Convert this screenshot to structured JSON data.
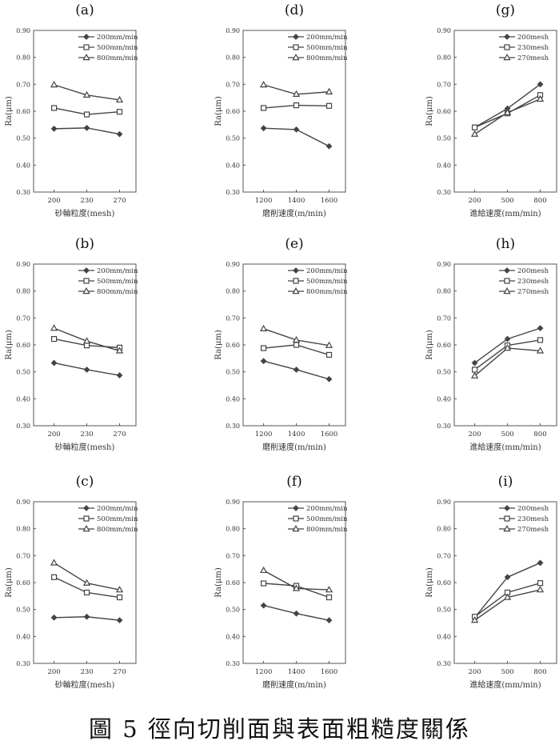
{
  "caption": "圖 5 徑向切削面與表面粗糙度關係",
  "colors": {
    "axis": "#555555",
    "line": "#444444",
    "text": "#333333"
  },
  "chart_data": [
    {
      "panel": "(a)",
      "type": "line",
      "ylabel": "Ra(μm)",
      "xlabel": "砂輪粒度(mesh)",
      "categories": [
        "200",
        "230",
        "270"
      ],
      "ylim": [
        0.3,
        0.9
      ],
      "yticks": [
        "0.30",
        "0.40",
        "0.50",
        "0.60",
        "0.70",
        "0.80",
        "0.90"
      ],
      "legend": "top-right",
      "series": [
        {
          "name": "200mm/min",
          "marker": "diamond",
          "values": [
            0.535,
            0.538,
            0.515
          ]
        },
        {
          "name": "500mm/min",
          "marker": "square",
          "values": [
            0.612,
            0.588,
            0.598
          ]
        },
        {
          "name": "800mm/min",
          "marker": "triangle",
          "values": [
            0.698,
            0.66,
            0.642
          ]
        }
      ]
    },
    {
      "panel": "(d)",
      "type": "line",
      "ylabel": "Ra(μm)",
      "xlabel": "磨削速度(m/min)",
      "categories": [
        "1200",
        "1400",
        "1600"
      ],
      "ylim": [
        0.3,
        0.9
      ],
      "yticks": [
        "0.30",
        "0.40",
        "0.50",
        "0.60",
        "0.70",
        "0.80",
        "0.90"
      ],
      "legend": "top-right",
      "series": [
        {
          "name": "200mm/min",
          "marker": "diamond",
          "values": [
            0.537,
            0.532,
            0.47
          ]
        },
        {
          "name": "500mm/min",
          "marker": "square",
          "values": [
            0.612,
            0.622,
            0.62
          ]
        },
        {
          "name": "800mm/min",
          "marker": "triangle",
          "values": [
            0.698,
            0.663,
            0.672
          ]
        }
      ]
    },
    {
      "panel": "(g)",
      "type": "line",
      "ylabel": "Ra(μm)",
      "xlabel": "進給速度(mm/min)",
      "categories": [
        "200",
        "500",
        "800"
      ],
      "ylim": [
        0.3,
        0.9
      ],
      "yticks": [
        "0.30",
        "0.40",
        "0.50",
        "0.60",
        "0.70",
        "0.80",
        "0.90"
      ],
      "legend": "top-right",
      "series": [
        {
          "name": "200mesh",
          "marker": "diamond",
          "values": [
            0.54,
            0.61,
            0.7
          ]
        },
        {
          "name": "230mesh",
          "marker": "square",
          "values": [
            0.54,
            0.592,
            0.66
          ]
        },
        {
          "name": "270mesh",
          "marker": "triangle",
          "values": [
            0.515,
            0.595,
            0.645
          ]
        }
      ]
    },
    {
      "panel": "(b)",
      "type": "line",
      "ylabel": "Ra(μm)",
      "xlabel": "砂輪粒度(mesh)",
      "categories": [
        "200",
        "230",
        "270"
      ],
      "ylim": [
        0.3,
        0.9
      ],
      "yticks": [
        "0.30",
        "0.40",
        "0.50",
        "0.60",
        "0.70",
        "0.80",
        "0.90"
      ],
      "legend": "top-right",
      "series": [
        {
          "name": "200mm/min",
          "marker": "diamond",
          "values": [
            0.533,
            0.508,
            0.487
          ]
        },
        {
          "name": "500mm/min",
          "marker": "square",
          "values": [
            0.622,
            0.598,
            0.59
          ]
        },
        {
          "name": "800mm/min",
          "marker": "triangle",
          "values": [
            0.662,
            0.614,
            0.578
          ]
        }
      ]
    },
    {
      "panel": "(e)",
      "type": "line",
      "ylabel": "Ra(μm)",
      "xlabel": "磨削速度(m/min)",
      "categories": [
        "1200",
        "1400",
        "1600"
      ],
      "ylim": [
        0.3,
        0.9
      ],
      "yticks": [
        "0.30",
        "0.40",
        "0.50",
        "0.60",
        "0.70",
        "0.80",
        "0.90"
      ],
      "legend": "top-right",
      "series": [
        {
          "name": "200mm/min",
          "marker": "diamond",
          "values": [
            0.54,
            0.508,
            0.473
          ]
        },
        {
          "name": "500mm/min",
          "marker": "square",
          "values": [
            0.588,
            0.6,
            0.563
          ]
        },
        {
          "name": "800mm/min",
          "marker": "triangle",
          "values": [
            0.66,
            0.618,
            0.598
          ]
        }
      ]
    },
    {
      "panel": "(h)",
      "type": "line",
      "ylabel": "Ra(μm)",
      "xlabel": "進給速度(mm/min)",
      "categories": [
        "200",
        "500",
        "800"
      ],
      "ylim": [
        0.3,
        0.9
      ],
      "yticks": [
        "0.30",
        "0.40",
        "0.50",
        "0.60",
        "0.70",
        "0.80",
        "0.90"
      ],
      "legend": "top-right",
      "series": [
        {
          "name": "200mesh",
          "marker": "diamond",
          "values": [
            0.533,
            0.622,
            0.662
          ]
        },
        {
          "name": "230mesh",
          "marker": "square",
          "values": [
            0.508,
            0.598,
            0.618
          ]
        },
        {
          "name": "270mesh",
          "marker": "triangle",
          "values": [
            0.485,
            0.588,
            0.578
          ]
        }
      ]
    },
    {
      "panel": "(c)",
      "type": "line",
      "ylabel": "Ra(μm)",
      "xlabel": "砂輪粒度(mesh)",
      "categories": [
        "200",
        "230",
        "270"
      ],
      "ylim": [
        0.3,
        0.9
      ],
      "yticks": [
        "0.30",
        "0.40",
        "0.50",
        "0.60",
        "0.70",
        "0.80",
        "0.90"
      ],
      "legend": "top-right",
      "series": [
        {
          "name": "200mm/min",
          "marker": "diamond",
          "values": [
            0.47,
            0.473,
            0.46
          ]
        },
        {
          "name": "500mm/min",
          "marker": "square",
          "values": [
            0.62,
            0.563,
            0.545
          ]
        },
        {
          "name": "800mm/min",
          "marker": "triangle",
          "values": [
            0.673,
            0.598,
            0.573
          ]
        }
      ]
    },
    {
      "panel": "(f)",
      "type": "line",
      "ylabel": "Ra(μm)",
      "xlabel": "磨削速度(m/min)",
      "categories": [
        "1200",
        "1400",
        "1600"
      ],
      "ylim": [
        0.3,
        0.9
      ],
      "yticks": [
        "0.30",
        "0.40",
        "0.50",
        "0.60",
        "0.70",
        "0.80",
        "0.90"
      ],
      "legend": "top-right",
      "series": [
        {
          "name": "200mm/min",
          "marker": "diamond",
          "values": [
            0.515,
            0.485,
            0.46
          ]
        },
        {
          "name": "500mm/min",
          "marker": "square",
          "values": [
            0.597,
            0.588,
            0.545
          ]
        },
        {
          "name": "800mm/min",
          "marker": "triangle",
          "values": [
            0.645,
            0.578,
            0.573
          ]
        }
      ]
    },
    {
      "panel": "(i)",
      "type": "line",
      "ylabel": "Ra(μm)",
      "xlabel": "進給速度(mm/min)",
      "categories": [
        "200",
        "500",
        "800"
      ],
      "ylim": [
        0.3,
        0.9
      ],
      "yticks": [
        "0.30",
        "0.40",
        "0.50",
        "0.60",
        "0.70",
        "0.80",
        "0.90"
      ],
      "legend": "top-right",
      "series": [
        {
          "name": "200mesh",
          "marker": "diamond",
          "values": [
            0.47,
            0.62,
            0.673
          ]
        },
        {
          "name": "230mesh",
          "marker": "square",
          "values": [
            0.473,
            0.563,
            0.598
          ]
        },
        {
          "name": "270mesh",
          "marker": "triangle",
          "values": [
            0.46,
            0.545,
            0.573
          ]
        }
      ]
    }
  ]
}
